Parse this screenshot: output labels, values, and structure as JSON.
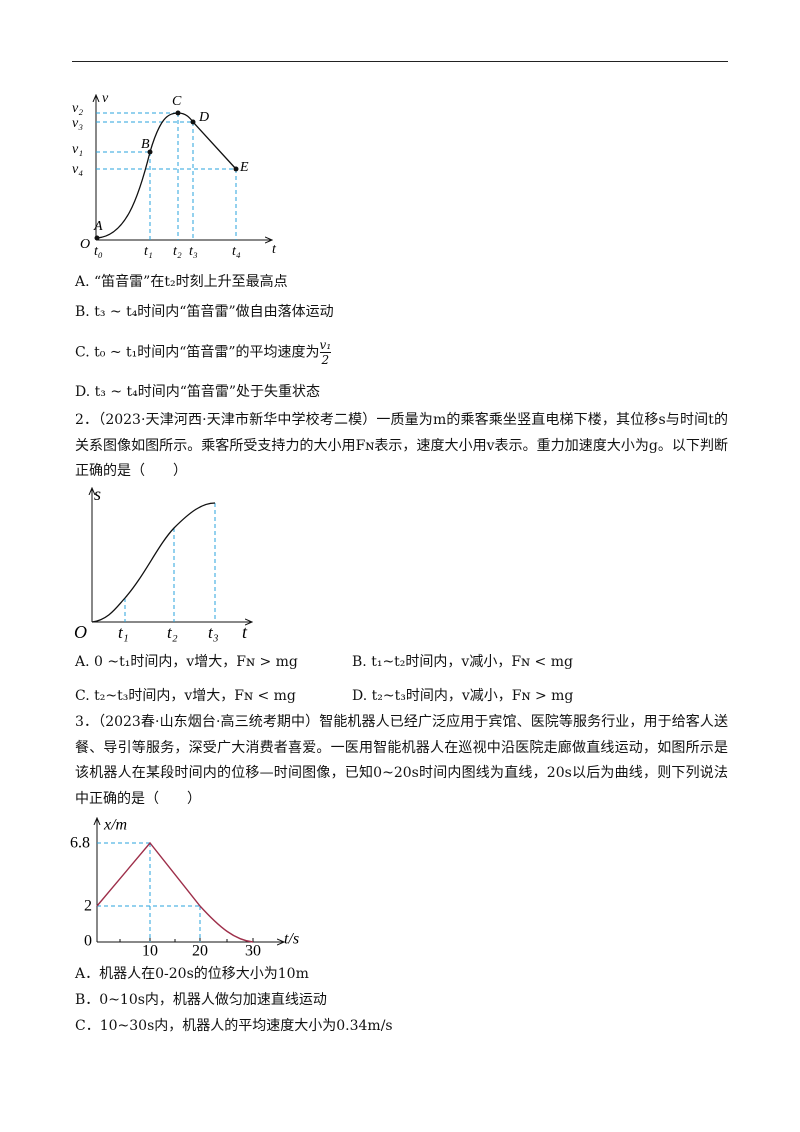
{
  "q1": {
    "figure": {
      "v_axis": "v",
      "t_axis": "t",
      "origin": "O",
      "v_labels": [
        "v₂",
        "v₃",
        "v₁",
        "v₄"
      ],
      "t_labels": [
        "t₀",
        "t₁",
        "t₂",
        "t₃",
        "t₄"
      ],
      "points": [
        "A",
        "B",
        "C",
        "D",
        "E"
      ]
    },
    "options": [
      {
        "label": "A.",
        "text": "“笛音雷”在t₂时刻上升至最高点"
      },
      {
        "label": "B.",
        "text": "t₃ ~ t₄时间内“笛音雷”做自由落体运动"
      },
      {
        "label": "C.",
        "text": "t₀ ~ t₁时间内“笛音雷”的平均速度为",
        "fraction": {
          "numerator": "v₁",
          "denominator": "2"
        }
      },
      {
        "label": "D.",
        "text": "t₃ ~ t₄时间内“笛音雷”处于失重状态"
      }
    ]
  },
  "q2": {
    "stem": "2．（2023·天津河西·天津市新华中学校考二模）一质量为m的乘客乘坐竖直电梯下楼，其位移s与时间t的关系图像如图所示。乘客所受支持力的大小用Fɴ表示，速度大小用v表示。重力加速度大小为g。以下判断正确的是（　　）",
    "figure": {
      "s_axis": "s",
      "t_axis": "t",
      "origin": "O",
      "t_labels": [
        "t₁",
        "t₂",
        "t₃"
      ]
    },
    "options": [
      {
        "label": "A.",
        "text": "0 ~t₁时间内，v增大，Fɴ > mg"
      },
      {
        "label": "B.",
        "text": "t₁~t₂时间内，v减小，Fɴ < mg"
      },
      {
        "label": "C.",
        "text": "t₂~t₃时间内，v增大，Fɴ < mg"
      },
      {
        "label": "D.",
        "text": "t₂~t₃时间内，v减小，Fɴ > mg"
      }
    ]
  },
  "q3": {
    "stem": "3．（2023春·山东烟台·高三统考期中）智能机器人已经广泛应用于宾馆、医院等服务行业，用于给客人送餐、导引等服务，深受广大消费者喜爱。一医用智能机器人在巡视中沿医院走廊做直线运动，如图所示是该机器人在某段时间内的位移—时间图像，已知0~20s时间内图线为直线，20s以后为曲线，则下列说法中正确的是（　　）",
    "figure": {
      "y_axis": "x/m",
      "x_axis": "t/s",
      "y_labels": [
        "6.8",
        "2",
        "0"
      ],
      "x_labels": [
        "10",
        "20",
        "30"
      ]
    },
    "options": [
      {
        "label": "A．",
        "text": "机器人在0-20s的位移大小为10m"
      },
      {
        "label": "B．",
        "text": "0~10s内，机器人做匀加速直线运动"
      },
      {
        "label": "C．",
        "text": "10~30s内，机器人的平均速度大小为0.34m/s"
      }
    ]
  }
}
